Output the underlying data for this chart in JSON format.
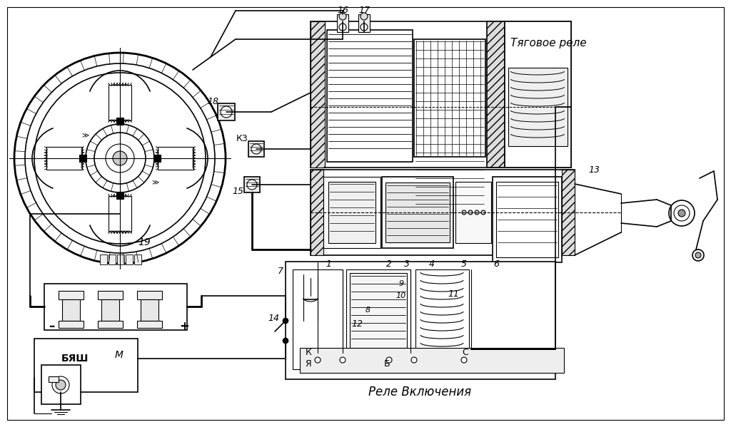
{
  "bg_color": "#ffffff",
  "line_color": "#000000",
  "label_tyagovoe_rele": "Тяговое реле",
  "label_rele_vklyucheniya": "Реле Включения",
  "label_byash": "БЯШ",
  "label_m": "М",
  "label_k3": "К3",
  "label_minus": "–",
  "label_plus": "+"
}
